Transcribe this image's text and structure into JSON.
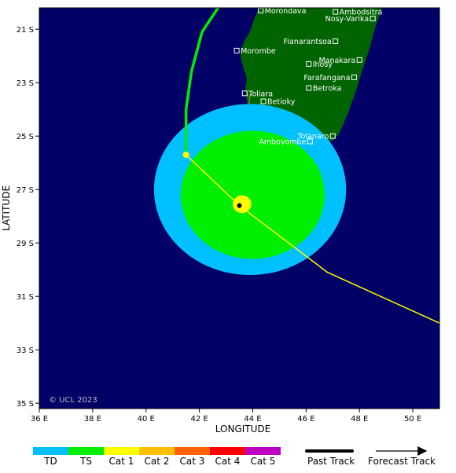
{
  "map": {
    "title": "",
    "xlabel": "LONGITUDE",
    "ylabel": "LATITUDE",
    "lon_range": [
      36,
      51
    ],
    "lat_range": [
      -35.2,
      -20.2
    ],
    "lon_ticks": [
      {
        "value": 36,
        "label": "36 E"
      },
      {
        "value": 38,
        "label": "38 E"
      },
      {
        "value": 40,
        "label": "40 E"
      },
      {
        "value": 42,
        "label": "42 E"
      },
      {
        "value": 44,
        "label": "44 E"
      },
      {
        "value": 46,
        "label": "46 E"
      },
      {
        "value": 48,
        "label": "48 E"
      },
      {
        "value": 50,
        "label": "50 E"
      }
    ],
    "lat_ticks": [
      {
        "value": -21,
        "label": "21 S"
      },
      {
        "value": -23,
        "label": "23 S"
      },
      {
        "value": -25,
        "label": "25 S"
      },
      {
        "value": -27,
        "label": "27 S"
      },
      {
        "value": -29,
        "label": "29 S"
      },
      {
        "value": -31,
        "label": "31 S"
      },
      {
        "value": -33,
        "label": "33 S"
      },
      {
        "value": -35,
        "label": "35 S"
      }
    ],
    "copyright": "© UCL 2023",
    "colors": {
      "ocean": "#000066",
      "land": "#006400",
      "td": "#00c0ff",
      "ts": "#00ee00",
      "cat1": "#ffff00",
      "cat2": "#ffc000",
      "cat3": "#ff6000",
      "cat4": "#ff0000",
      "cat5": "#c000c0"
    }
  },
  "towns": [
    {
      "name": "Morondava",
      "lon": 44.3,
      "lat": -20.3,
      "label_side": "right"
    },
    {
      "name": "Ambodsitra",
      "lon": 47.1,
      "lat": -20.35,
      "label_side": "right"
    },
    {
      "name": "Nosy-Varika",
      "lon": 48.5,
      "lat": -20.6,
      "label_side": "left"
    },
    {
      "name": "Fianarantsoa",
      "lon": 47.1,
      "lat": -21.45,
      "label_side": "left"
    },
    {
      "name": "Morombe",
      "lon": 43.4,
      "lat": -21.8,
      "label_side": "right"
    },
    {
      "name": "Manakara",
      "lon": 48.0,
      "lat": -22.15,
      "label_side": "left"
    },
    {
      "name": "Ihosy",
      "lon": 46.1,
      "lat": -22.3,
      "label_side": "right"
    },
    {
      "name": "Farafangana",
      "lon": 47.8,
      "lat": -22.8,
      "label_side": "left"
    },
    {
      "name": "Betroka",
      "lon": 46.1,
      "lat": -23.2,
      "label_side": "right"
    },
    {
      "name": "Toliara",
      "lon": 43.7,
      "lat": -23.4,
      "label_side": "right"
    },
    {
      "name": "Betioky",
      "lon": 44.4,
      "lat": -23.7,
      "label_side": "right"
    },
    {
      "name": "Tolanaro",
      "lon": 47.0,
      "lat": -25.0,
      "label_side": "left"
    },
    {
      "name": "Ambovombe",
      "lon": 46.15,
      "lat": -25.2,
      "label_side": "left"
    }
  ],
  "storm": {
    "position": {
      "lon": 43.5,
      "lat": -27.6
    },
    "wind_fields": [
      {
        "category": "TD",
        "center_lon": 43.9,
        "center_lat": -27.0,
        "radius_lon": 3.6,
        "radius_lat": 3.2
      },
      {
        "category": "TS",
        "center_lon": 44.0,
        "center_lat": -27.2,
        "radius_lon": 2.7,
        "radius_lat": 2.4
      },
      {
        "category": "Cat 1",
        "center_lon": 43.6,
        "center_lat": -27.55,
        "radius_lon": 0.35,
        "radius_lat": 0.33
      }
    ],
    "past_track": [
      {
        "lon": 42.7,
        "lat": -20.2,
        "category": "TS"
      },
      {
        "lon": 42.1,
        "lat": -21.1,
        "category": "TS"
      },
      {
        "lon": 41.7,
        "lat": -22.6,
        "category": "TS"
      },
      {
        "lon": 41.5,
        "lat": -24.0,
        "category": "TS"
      },
      {
        "lon": 41.5,
        "lat": -25.7,
        "category": "Cat 1"
      },
      {
        "lon": 43.5,
        "lat": -27.6,
        "category": "Cat 1"
      }
    ],
    "forecast_track": [
      {
        "lon": 41.5,
        "lat": -25.7,
        "category": "Cat 1"
      },
      {
        "lon": 43.5,
        "lat": -27.6,
        "category": "Cat 1"
      },
      {
        "lon": 46.8,
        "lat": -30.1,
        "category": "Cat 1"
      },
      {
        "lon": 51.0,
        "lat": -32.0,
        "category": "TS"
      }
    ]
  },
  "legend": {
    "categories": [
      {
        "label": "TD",
        "color": "#00c0ff"
      },
      {
        "label": "TS",
        "color": "#00ee00"
      },
      {
        "label": "Cat 1",
        "color": "#ffff00"
      },
      {
        "label": "Cat 2",
        "color": "#ffc000"
      },
      {
        "label": "Cat 3",
        "color": "#ff6000"
      },
      {
        "label": "Cat 4",
        "color": "#ff0000"
      },
      {
        "label": "Cat 5",
        "color": "#c000c0"
      }
    ],
    "past_track_label": "Past Track",
    "forecast_track_label": "Forecast Track"
  }
}
